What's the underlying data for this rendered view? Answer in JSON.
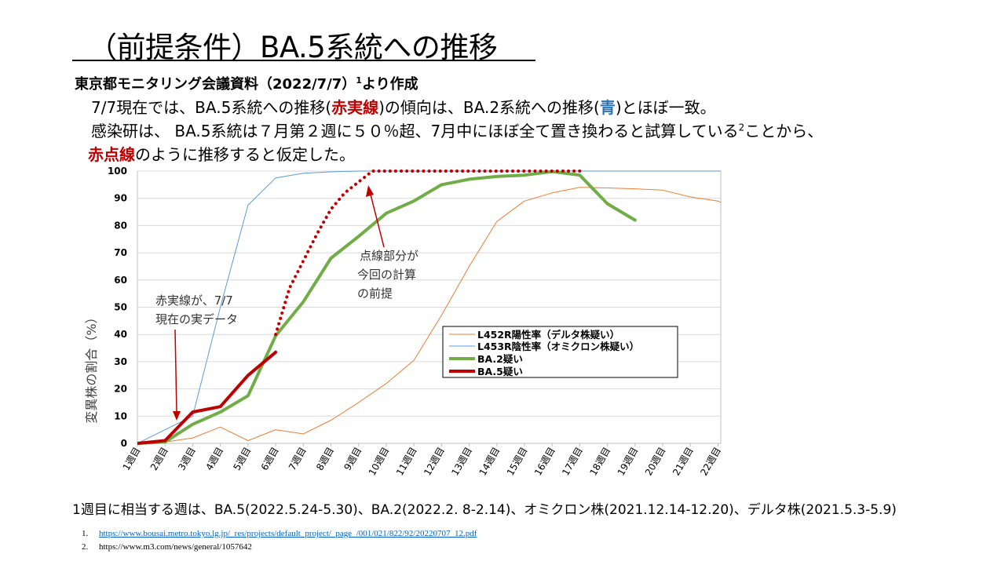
{
  "slide": {
    "title": "（前提条件）BA.5系統への推移",
    "source": {
      "text": "東京都モニタリング会議資料（2022/7/7）",
      "sup": "1",
      "suffix": "より作成"
    },
    "para1": {
      "a": "7/7現在では、BA.5系統への推移(",
      "b": "赤実線",
      "c": ")の傾向は、BA.2系統への推移(",
      "d": "青",
      "e": ")とほぼ一致。"
    },
    "para2": {
      "a": "感染研は、 BA.5系統は７月第２週に５０％超、7月中にほぼ全て置き換わると試算している",
      "sup": "2",
      "b": "ことから、"
    },
    "para3": {
      "a": "赤点線",
      "b": "のように推移すると仮定した。"
    },
    "footnote": "1週目に相当する週は、BA.5(2022.5.24-5.30)、BA.2(2022.2. 8-2.14)、オミクロン株(2021.12.14-12.20)、デルタ株(2021.5.3-5.9)",
    "refs": [
      {
        "num": "1.",
        "text": "https://www.bousai.metro.tokyo.lg.jp/_res/projects/default_project/_page_/001/021/822/92/20220707_12.pdf"
      },
      {
        "num": "2.",
        "text": "https://www.m3.com/news/general/1057642"
      }
    ]
  },
  "chart_data": {
    "type": "line",
    "ylabel": "変異株の割合（%）",
    "xlabel": "",
    "ylim": [
      0,
      100
    ],
    "yticks": [
      0,
      10,
      20,
      30,
      40,
      50,
      60,
      70,
      80,
      90,
      100
    ],
    "categories": [
      "1週目",
      "2週目",
      "3週目",
      "4週目",
      "5週目",
      "6週目",
      "7週目",
      "8週目",
      "9週目",
      "10週目",
      "11週目",
      "12週目",
      "13週目",
      "14週目",
      "15週目",
      "16週目",
      "17週目",
      "18週目",
      "19週目",
      "20週目",
      "21週目",
      "22週目"
    ],
    "grid": true,
    "legend_position": "center-right",
    "series": [
      {
        "name": "L452R陽性率（デルタ株疑い）",
        "color": "#ed7d31",
        "style": "thin",
        "x": [
          1,
          2,
          3,
          4,
          5,
          6,
          7,
          8,
          9,
          10,
          11,
          12,
          13,
          14,
          15,
          16,
          17,
          18,
          19,
          20,
          21,
          22,
          23
        ],
        "values": [
          0,
          0.5,
          2,
          6,
          1,
          5,
          3.5,
          8.5,
          15,
          22,
          30.5,
          47,
          65,
          81.5,
          89,
          92,
          94,
          93.8,
          93.5,
          93,
          90.5,
          89,
          84
        ]
      },
      {
        "name": "L453R陰性率（オミクロン株疑い）",
        "color": "#5b9bd5",
        "style": "thin",
        "x": [
          1,
          2,
          3,
          4,
          5,
          6,
          7,
          8,
          9,
          10,
          11,
          12,
          13,
          14,
          15,
          16,
          17,
          18,
          19,
          20,
          21,
          22,
          23
        ],
        "values": [
          0,
          5,
          10,
          50,
          87.5,
          97.5,
          99.2,
          99.7,
          100,
          100,
          100,
          100,
          100,
          100,
          100,
          100,
          100,
          100,
          100,
          100,
          100,
          100,
          100
        ]
      },
      {
        "name": "BA.2疑い",
        "color": "#70ad47",
        "style": "thick",
        "x": [
          1,
          2,
          3,
          4,
          5,
          6,
          7,
          8,
          9,
          10,
          11,
          12,
          13,
          14,
          15,
          16,
          17,
          18,
          19
        ],
        "values": [
          0,
          0.5,
          7,
          11.5,
          17.5,
          39.5,
          52,
          68,
          76,
          84.5,
          89,
          95,
          97,
          98,
          98.5,
          99.8,
          98.5,
          88,
          82
        ]
      },
      {
        "name": "BA.5疑い",
        "color": "#c00000",
        "style": "thick",
        "x": [
          1,
          2,
          3,
          4,
          5,
          6
        ],
        "values": [
          0,
          1,
          11.5,
          13.5,
          25,
          33.5
        ]
      },
      {
        "name": "",
        "color": "#c00000",
        "style": "dotted",
        "x": [
          6,
          6.5,
          7,
          7.5,
          8,
          8.5,
          9,
          9.5,
          10,
          11,
          12,
          13,
          14,
          15,
          16,
          17
        ],
        "values": [
          40,
          57,
          67,
          77,
          86,
          92,
          96,
          100,
          100,
          100,
          100,
          100,
          100,
          100,
          100,
          100
        ]
      }
    ],
    "annotations": [
      {
        "id": "solid",
        "lines": [
          "赤実線が、7/7",
          "現在の実データ"
        ]
      },
      {
        "id": "dotted",
        "lines": [
          "点線部分が",
          "今回の計算",
          "の前提"
        ]
      }
    ]
  }
}
